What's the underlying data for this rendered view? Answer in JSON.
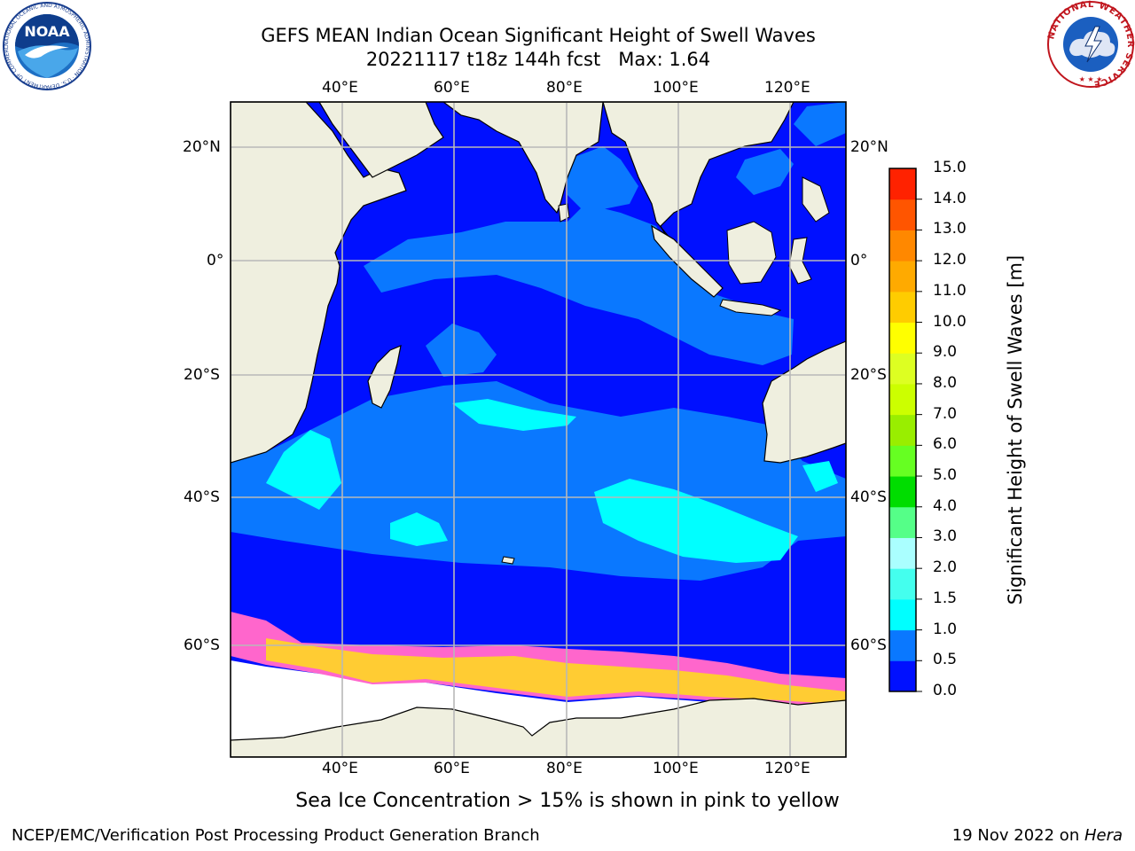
{
  "title": {
    "line1": "GEFS MEAN Indian Ocean Significant Height of Swell Waves",
    "line2": "20221117 t18z 144h fcst   Max: 1.64"
  },
  "logos": {
    "noaa_text": "NOAA",
    "noaa_ring": "NATIONAL OCEANIC AND ATMOSPHERIC ADMINISTRATION · U.S. DEPARTMENT OF COMMERCE",
    "nws_ring": "NATIONAL WEATHER SERVICE"
  },
  "map": {
    "lon_range": [
      20,
      130
    ],
    "lat_range": [
      -72,
      27
    ],
    "grid": true,
    "lon_ticks": [
      "40°E",
      "60°E",
      "80°E",
      "100°E",
      "120°E"
    ],
    "lat_ticks": [
      "20°N",
      "0°",
      "20°S",
      "40°S",
      "60°S"
    ],
    "colors": {
      "land": "#efefdf",
      "ocean_deep": "#0010ff",
      "ocean_mid": "#0a78ff",
      "swell_high": "#00ffff",
      "ice": "#ffffff",
      "grid": "#b8b8b8"
    }
  },
  "colorbar": {
    "label": "Significant Height of Swell Waves [m]",
    "ticks": [
      "0.0",
      "0.5",
      "1.0",
      "1.5",
      "2.0",
      "3.0",
      "4.0",
      "5.0",
      "6.0",
      "7.0",
      "8.0",
      "9.0",
      "10.0",
      "11.0",
      "12.0",
      "13.0",
      "14.0",
      "15.0"
    ],
    "colors": [
      "#0010ff",
      "#0a78ff",
      "#00ffff",
      "#44ffee",
      "#aaffff",
      "#55ff88",
      "#00dd00",
      "#66ff22",
      "#99ee00",
      "#ccff00",
      "#ddff22",
      "#ffff00",
      "#ffcc00",
      "#ffaa00",
      "#ff8800",
      "#ff5500",
      "#ff2200",
      "#ff0000"
    ]
  },
  "sea_ice_note": "Sea Ice Concentration > 15% is shown in pink to yellow",
  "footer": {
    "left": "NCEP/EMC/Verification Post Processing Product Generation Branch",
    "right_date": "19 Nov 2022 on ",
    "right_host": "Hera"
  }
}
